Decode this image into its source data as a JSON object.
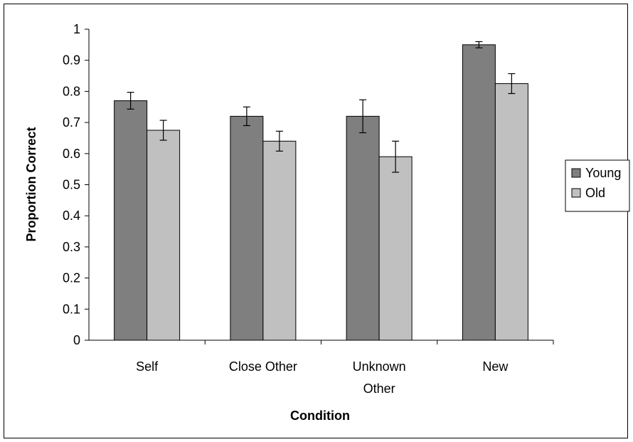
{
  "chart_data": {
    "type": "bar",
    "title": "",
    "xlabel": "Condition",
    "ylabel": "Proportion Correct",
    "ylim": [
      0,
      1
    ],
    "yticks": [
      "0",
      "0.1",
      "0.2",
      "0.3",
      "0.4",
      "0.5",
      "0.6",
      "0.7",
      "0.8",
      "0.9",
      "1"
    ],
    "categories": [
      [
        "Self"
      ],
      [
        "Close Other"
      ],
      [
        "Unknown",
        "Other"
      ],
      [
        "New"
      ]
    ],
    "series": [
      {
        "name": "Young",
        "color": "#7f7f7f",
        "values": [
          0.77,
          0.72,
          0.72,
          0.95
        ],
        "errors": [
          0.027,
          0.03,
          0.053,
          0.01
        ]
      },
      {
        "name": "Old",
        "color": "#c0c0c0",
        "values": [
          0.675,
          0.64,
          0.59,
          0.825
        ],
        "errors": [
          0.032,
          0.032,
          0.05,
          0.032
        ]
      }
    ],
    "grid": false,
    "legend_position": "right"
  }
}
